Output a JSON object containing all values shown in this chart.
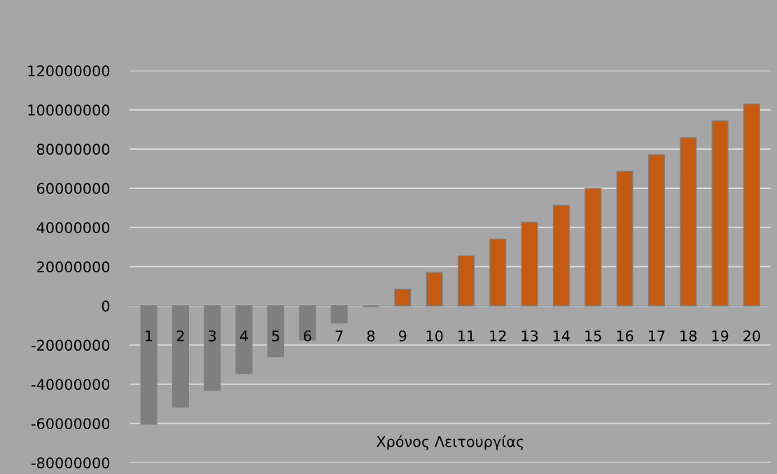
{
  "chart_data": {
    "type": "bar",
    "xlabel": "Χρόνος Λειτουργίας",
    "categories": [
      "1",
      "2",
      "3",
      "4",
      "5",
      "6",
      "7",
      "8",
      "9",
      "10",
      "11",
      "12",
      "13",
      "14",
      "15",
      "16",
      "17",
      "18",
      "19",
      "20"
    ],
    "values": [
      -60400000,
      -51700000,
      -43100000,
      -34600000,
      -26000000,
      -17400000,
      -8700000,
      -300000,
      8400000,
      17000000,
      25500000,
      34100000,
      42600000,
      51300000,
      59900000,
      68600000,
      77100000,
      85800000,
      94300000,
      103000000
    ],
    "colors": [
      "#7f7f7f",
      "#7f7f7f",
      "#7f7f7f",
      "#7f7f7f",
      "#7f7f7f",
      "#7f7f7f",
      "#7f7f7f",
      "#7f7f7f",
      "#c55a11",
      "#c55a11",
      "#c55a11",
      "#c55a11",
      "#c55a11",
      "#c55a11",
      "#c55a11",
      "#c55a11",
      "#c55a11",
      "#c55a11",
      "#c55a11",
      "#c55a11"
    ],
    "ylim": [
      -80000000,
      120000000
    ],
    "yticks": [
      -80000000,
      -60000000,
      -40000000,
      -20000000,
      0,
      20000000,
      40000000,
      60000000,
      80000000,
      100000000,
      120000000
    ],
    "grid": "y",
    "legend": false
  }
}
